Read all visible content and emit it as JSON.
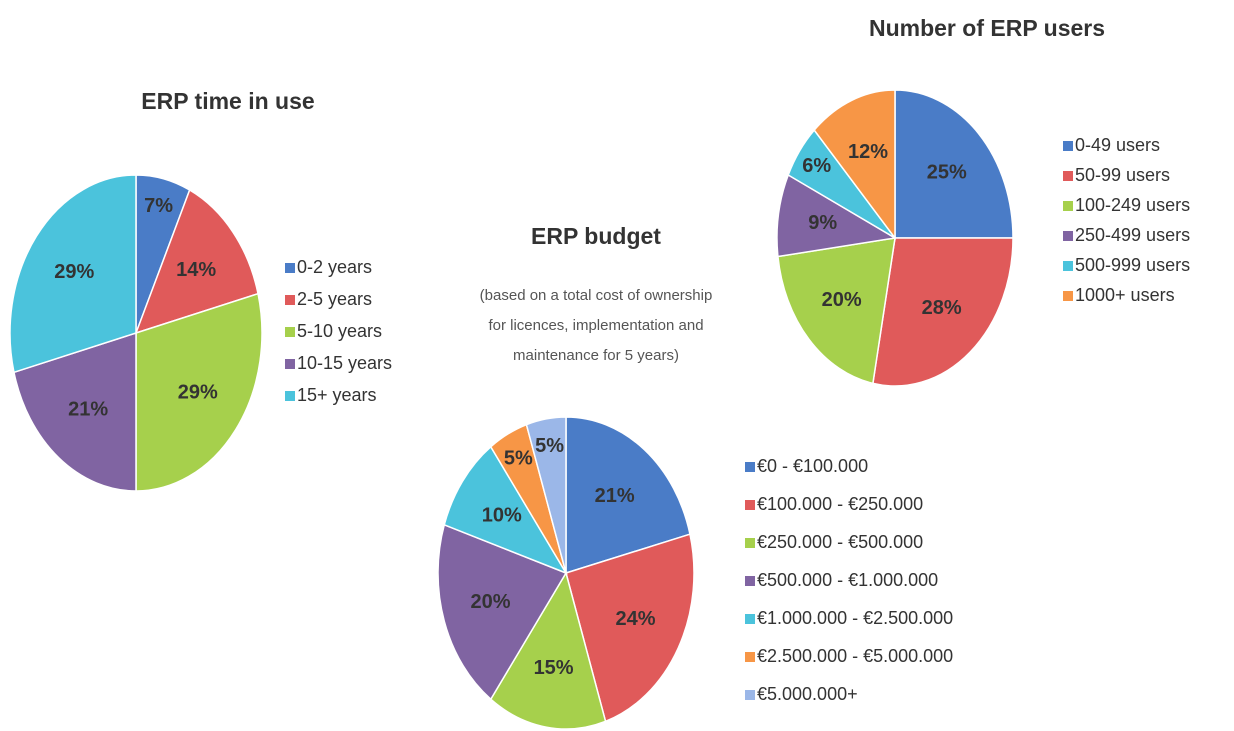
{
  "chart_data": [
    {
      "type": "pie",
      "title": "ERP time in use",
      "categories": [
        "0-2 years",
        "2-5 years",
        "5-10 years",
        "10-15 years",
        "15+ years"
      ],
      "values": [
        7,
        14,
        29,
        21,
        29
      ],
      "value_labels": [
        "7%",
        "14%",
        "29%",
        "21%",
        "29%"
      ],
      "colors": [
        "#4a7cc7",
        "#e05a5a",
        "#a6d04c",
        "#8064a2",
        "#4bc3dc"
      ]
    },
    {
      "type": "pie",
      "title": "ERP budget",
      "subtitle": [
        "(based on a total cost of ownership",
        "for licences, implementation and",
        "maintenance for 5 years)"
      ],
      "categories": [
        "€0 - €100.000",
        "€100.000 - €250.000",
        "€250.000 - €500.000",
        "€500.000 - €1.000.000",
        "€1.000.000 - €2.500.000",
        "€2.500.000 - €5.000.000",
        "€5.000.000+"
      ],
      "values": [
        21,
        24,
        15,
        20,
        10,
        5,
        5
      ],
      "value_labels": [
        "21%",
        "24%",
        "15%",
        "20%",
        "10%",
        "5%",
        "5%"
      ],
      "colors": [
        "#4a7cc7",
        "#e05a5a",
        "#a6d04c",
        "#8064a2",
        "#4bc3dc",
        "#f79646",
        "#9bb7e8"
      ]
    },
    {
      "type": "pie",
      "title": "Number of ERP users",
      "categories": [
        "0-49 users",
        "50-99 users",
        "100-249 users",
        "250-499 users",
        "500-999 users",
        "1000+ users"
      ],
      "values": [
        25,
        28,
        20,
        9,
        6,
        12
      ],
      "value_labels": [
        "25%",
        "28%",
        "20%",
        "9%",
        "6%",
        "12%"
      ],
      "colors": [
        "#4a7cc7",
        "#e05a5a",
        "#a6d04c",
        "#8064a2",
        "#4bc3dc",
        "#f79646"
      ]
    }
  ]
}
